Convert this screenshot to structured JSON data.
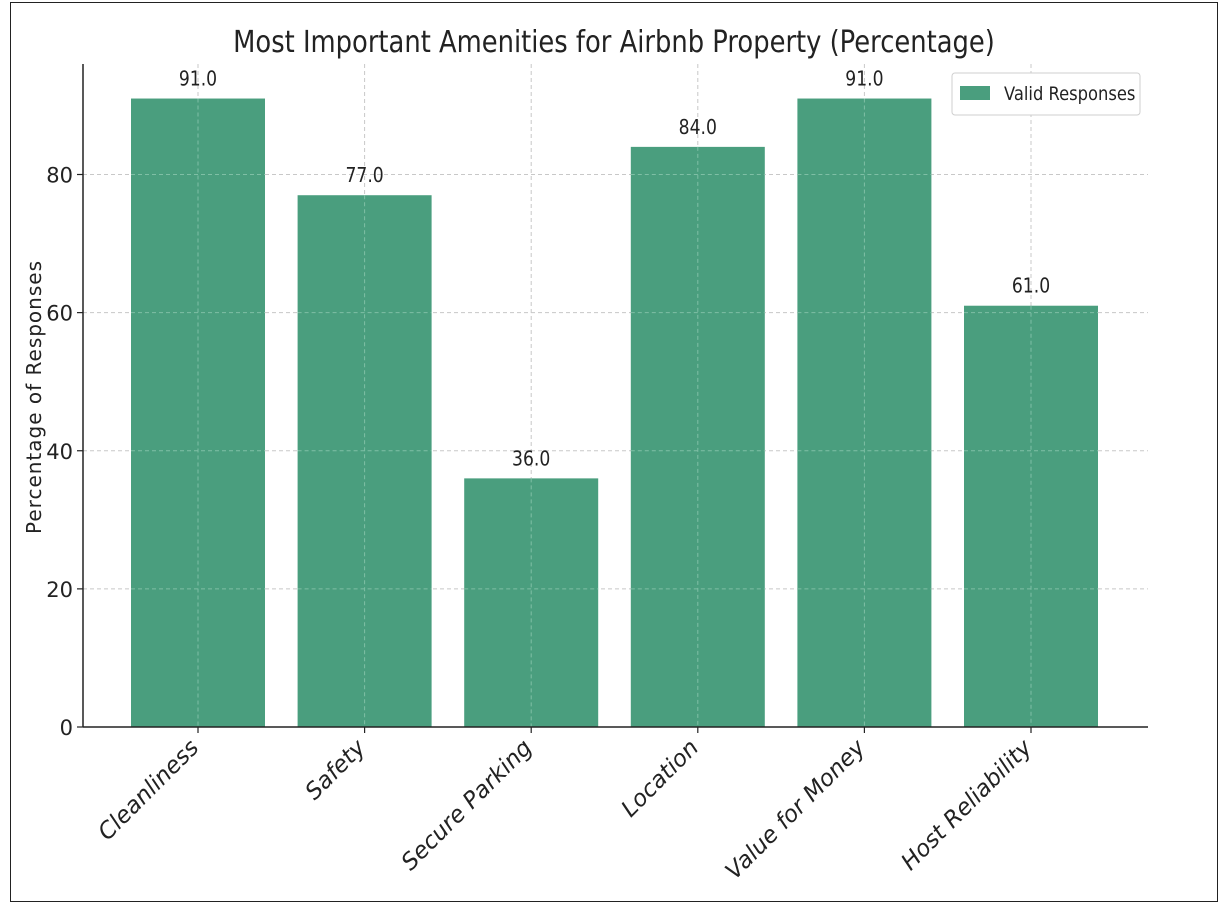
{
  "chart_data": {
    "type": "bar",
    "title": "Most Important Amenities for Airbnb Property (Percentage)",
    "xlabel": "",
    "ylabel": "Percentage of Responses",
    "categories": [
      "Cleanliness",
      "Safety",
      "Secure Parking",
      "Location",
      "Value for Money",
      "Host Reliability"
    ],
    "series": [
      {
        "name": "Valid Responses",
        "values": [
          91.0,
          77.0,
          36.0,
          84.0,
          91.0,
          61.0
        ]
      }
    ],
    "data_labels": [
      "91.0",
      "77.0",
      "36.0",
      "84.0",
      "91.0",
      "61.0"
    ],
    "ylim": [
      0,
      96
    ],
    "yticks": [
      0,
      20,
      40,
      60,
      80
    ],
    "grid": true,
    "legend": {
      "position": "top-right",
      "label": "Valid Responses"
    },
    "bar_color": "#4a9e7e"
  }
}
